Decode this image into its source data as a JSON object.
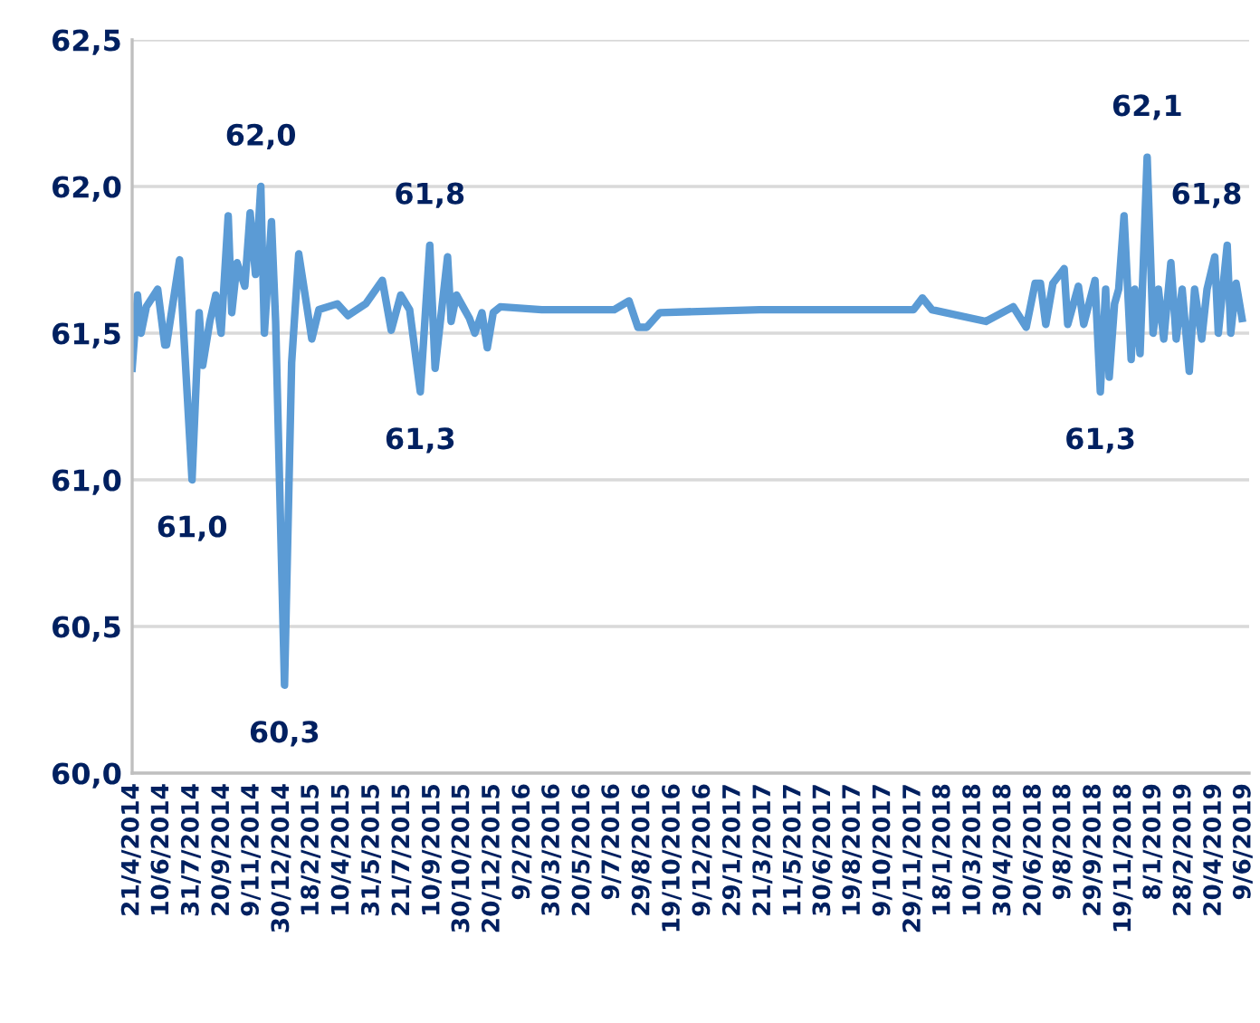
{
  "chart_data": {
    "type": "line",
    "x": [
      "2014-04-21",
      "2014-04-30",
      "2014-05-06",
      "2014-05-15",
      "2014-06-03",
      "2014-06-15",
      "2014-06-18",
      "2014-07-10",
      "2014-07-31",
      "2014-08-12",
      "2014-08-18",
      "2014-08-30",
      "2014-09-09",
      "2014-09-18",
      "2014-09-30",
      "2014-10-06",
      "2014-10-15",
      "2014-10-28",
      "2014-11-06",
      "2014-11-15",
      "2014-11-24",
      "2014-11-30",
      "2014-12-12",
      "2014-12-19",
      "2015-01-03",
      "2015-01-15",
      "2015-01-27",
      "2015-02-09",
      "2015-02-18",
      "2015-03-02",
      "2015-04-02",
      "2015-04-20",
      "2015-05-20",
      "2015-06-17",
      "2015-07-02",
      "2015-07-18",
      "2015-08-02",
      "2015-08-20",
      "2015-09-05",
      "2015-09-14",
      "2015-10-05",
      "2015-10-11",
      "2015-10-20",
      "2015-11-11",
      "2015-11-20",
      "2015-12-02",
      "2015-12-11",
      "2015-12-21",
      "2016-01-02",
      "2016-03-12",
      "2016-07-12",
      "2016-08-06",
      "2016-08-21",
      "2016-09-05",
      "2016-09-27",
      "2017-03-14",
      "2017-11-29",
      "2017-12-14",
      "2017-12-30",
      "2018-03-31",
      "2018-05-16",
      "2018-06-07",
      "2018-06-22",
      "2018-07-01",
      "2018-07-10",
      "2018-07-22",
      "2018-08-10",
      "2018-08-16",
      "2018-09-03",
      "2018-09-12",
      "2018-10-01",
      "2018-10-10",
      "2018-10-19",
      "2018-10-25",
      "2018-11-03",
      "2018-11-10",
      "2018-11-19",
      "2018-12-01",
      "2018-12-07",
      "2018-12-16",
      "2018-12-28",
      "2019-01-07",
      "2019-01-16",
      "2019-01-25",
      "2019-02-06",
      "2019-02-15",
      "2019-02-25",
      "2019-03-09",
      "2019-03-18",
      "2019-03-30",
      "2019-04-08",
      "2019-04-21",
      "2019-04-27",
      "2019-05-12",
      "2019-05-18",
      "2019-05-27",
      "2019-06-06"
    ],
    "series": [
      {
        "color": "#5b9bd5",
        "values": [
          61.38,
          61.63,
          61.5,
          61.59,
          61.65,
          61.46,
          61.46,
          61.75,
          61.0,
          61.57,
          61.39,
          61.54,
          61.63,
          61.5,
          61.9,
          61.57,
          61.74,
          61.66,
          61.91,
          61.7,
          62.0,
          61.5,
          61.88,
          61.54,
          60.3,
          61.4,
          61.77,
          61.6,
          61.48,
          61.58,
          61.6,
          61.56,
          61.6,
          61.68,
          61.51,
          61.63,
          61.58,
          61.3,
          61.8,
          61.38,
          61.76,
          61.54,
          61.63,
          61.55,
          61.5,
          61.57,
          61.45,
          61.57,
          61.59,
          61.58,
          61.58,
          61.61,
          61.52,
          61.52,
          61.57,
          61.58,
          61.58,
          61.62,
          61.58,
          61.54,
          61.59,
          61.52,
          61.67,
          61.67,
          61.53,
          61.67,
          61.72,
          61.53,
          61.66,
          61.53,
          61.68,
          61.3,
          61.65,
          61.35,
          61.6,
          61.65,
          61.9,
          61.41,
          61.65,
          61.43,
          62.1,
          61.5,
          61.65,
          61.48,
          61.74,
          61.48,
          61.65,
          61.37,
          61.65,
          61.48,
          61.65,
          61.76,
          61.5,
          61.8,
          61.5,
          61.67,
          61.55
        ]
      }
    ],
    "xlim": [
      "2014-04-21",
      "2019-06-18"
    ],
    "xticks": [
      {
        "value": "2014-04-21",
        "label": "21/4/2014"
      },
      {
        "value": "2014-06-10",
        "label": "10/6/2014"
      },
      {
        "value": "2014-07-31",
        "label": "31/7/2014"
      },
      {
        "value": "2014-09-20",
        "label": "20/9/2014"
      },
      {
        "value": "2014-11-09",
        "label": "9/11/2014"
      },
      {
        "value": "2014-12-30",
        "label": "30/12/2014"
      },
      {
        "value": "2015-02-18",
        "label": "18/2/2015"
      },
      {
        "value": "2015-04-10",
        "label": "10/4/2015"
      },
      {
        "value": "2015-05-31",
        "label": "31/5/2015"
      },
      {
        "value": "2015-07-21",
        "label": "21/7/2015"
      },
      {
        "value": "2015-09-10",
        "label": "10/9/2015"
      },
      {
        "value": "2015-10-30",
        "label": "30/10/2015"
      },
      {
        "value": "2015-12-20",
        "label": "20/12/2015"
      },
      {
        "value": "2016-02-09",
        "label": "9/2/2016"
      },
      {
        "value": "2016-03-30",
        "label": "30/3/2016"
      },
      {
        "value": "2016-05-20",
        "label": "20/5/2016"
      },
      {
        "value": "2016-07-09",
        "label": "9/7/2016"
      },
      {
        "value": "2016-08-29",
        "label": "29/8/2016"
      },
      {
        "value": "2016-10-19",
        "label": "19/10/2016"
      },
      {
        "value": "2016-12-09",
        "label": "9/12/2016"
      },
      {
        "value": "2017-01-29",
        "label": "29/1/2017"
      },
      {
        "value": "2017-03-21",
        "label": "21/3/2017"
      },
      {
        "value": "2017-05-11",
        "label": "11/5/2017"
      },
      {
        "value": "2017-06-30",
        "label": "30/6/2017"
      },
      {
        "value": "2017-08-19",
        "label": "19/8/2017"
      },
      {
        "value": "2017-10-09",
        "label": "9/10/2017"
      },
      {
        "value": "2017-11-29",
        "label": "29/11/2017"
      },
      {
        "value": "2018-01-18",
        "label": "18/1/2018"
      },
      {
        "value": "2018-03-10",
        "label": "10/3/2018"
      },
      {
        "value": "2018-04-30",
        "label": "30/4/2018"
      },
      {
        "value": "2018-06-20",
        "label": "20/6/2018"
      },
      {
        "value": "2018-08-09",
        "label": "9/8/2018"
      },
      {
        "value": "2018-09-29",
        "label": "29/9/2018"
      },
      {
        "value": "2018-11-19",
        "label": "19/11/2018"
      },
      {
        "value": "2019-01-08",
        "label": "8/1/2019"
      },
      {
        "value": "2019-02-28",
        "label": "28/2/2019"
      },
      {
        "value": "2019-04-20",
        "label": "20/4/2019"
      },
      {
        "value": "2019-06-09",
        "label": "9/6/2019"
      }
    ],
    "ylim": [
      60.0,
      62.5
    ],
    "yticks": [
      {
        "value": 60.0,
        "label": "60,0"
      },
      {
        "value": 60.5,
        "label": "60,5"
      },
      {
        "value": 61.0,
        "label": "61,0"
      },
      {
        "value": 61.5,
        "label": "61,5"
      },
      {
        "value": 62.0,
        "label": "62,0"
      },
      {
        "value": 62.5,
        "label": "62,5"
      }
    ],
    "grid": "y",
    "marker": "none",
    "line_style": "solid",
    "annotations": [
      {
        "text": "61,0",
        "x": "2014-07-31",
        "y": 61.0
      },
      {
        "text": "62,0",
        "x": "2014-11-24",
        "y": 62.0
      },
      {
        "text": "60,3",
        "x": "2015-01-03",
        "y": 60.3
      },
      {
        "text": "61,3",
        "x": "2015-08-20",
        "y": 61.3
      },
      {
        "text": "61,8",
        "x": "2015-09-05",
        "y": 61.8
      },
      {
        "text": "61,3",
        "x": "2018-10-10",
        "y": 61.3
      },
      {
        "text": "62,1",
        "x": "2018-12-28",
        "y": 62.1
      },
      {
        "text": "61,8",
        "x": "2019-05-12",
        "y": 61.8
      }
    ]
  }
}
